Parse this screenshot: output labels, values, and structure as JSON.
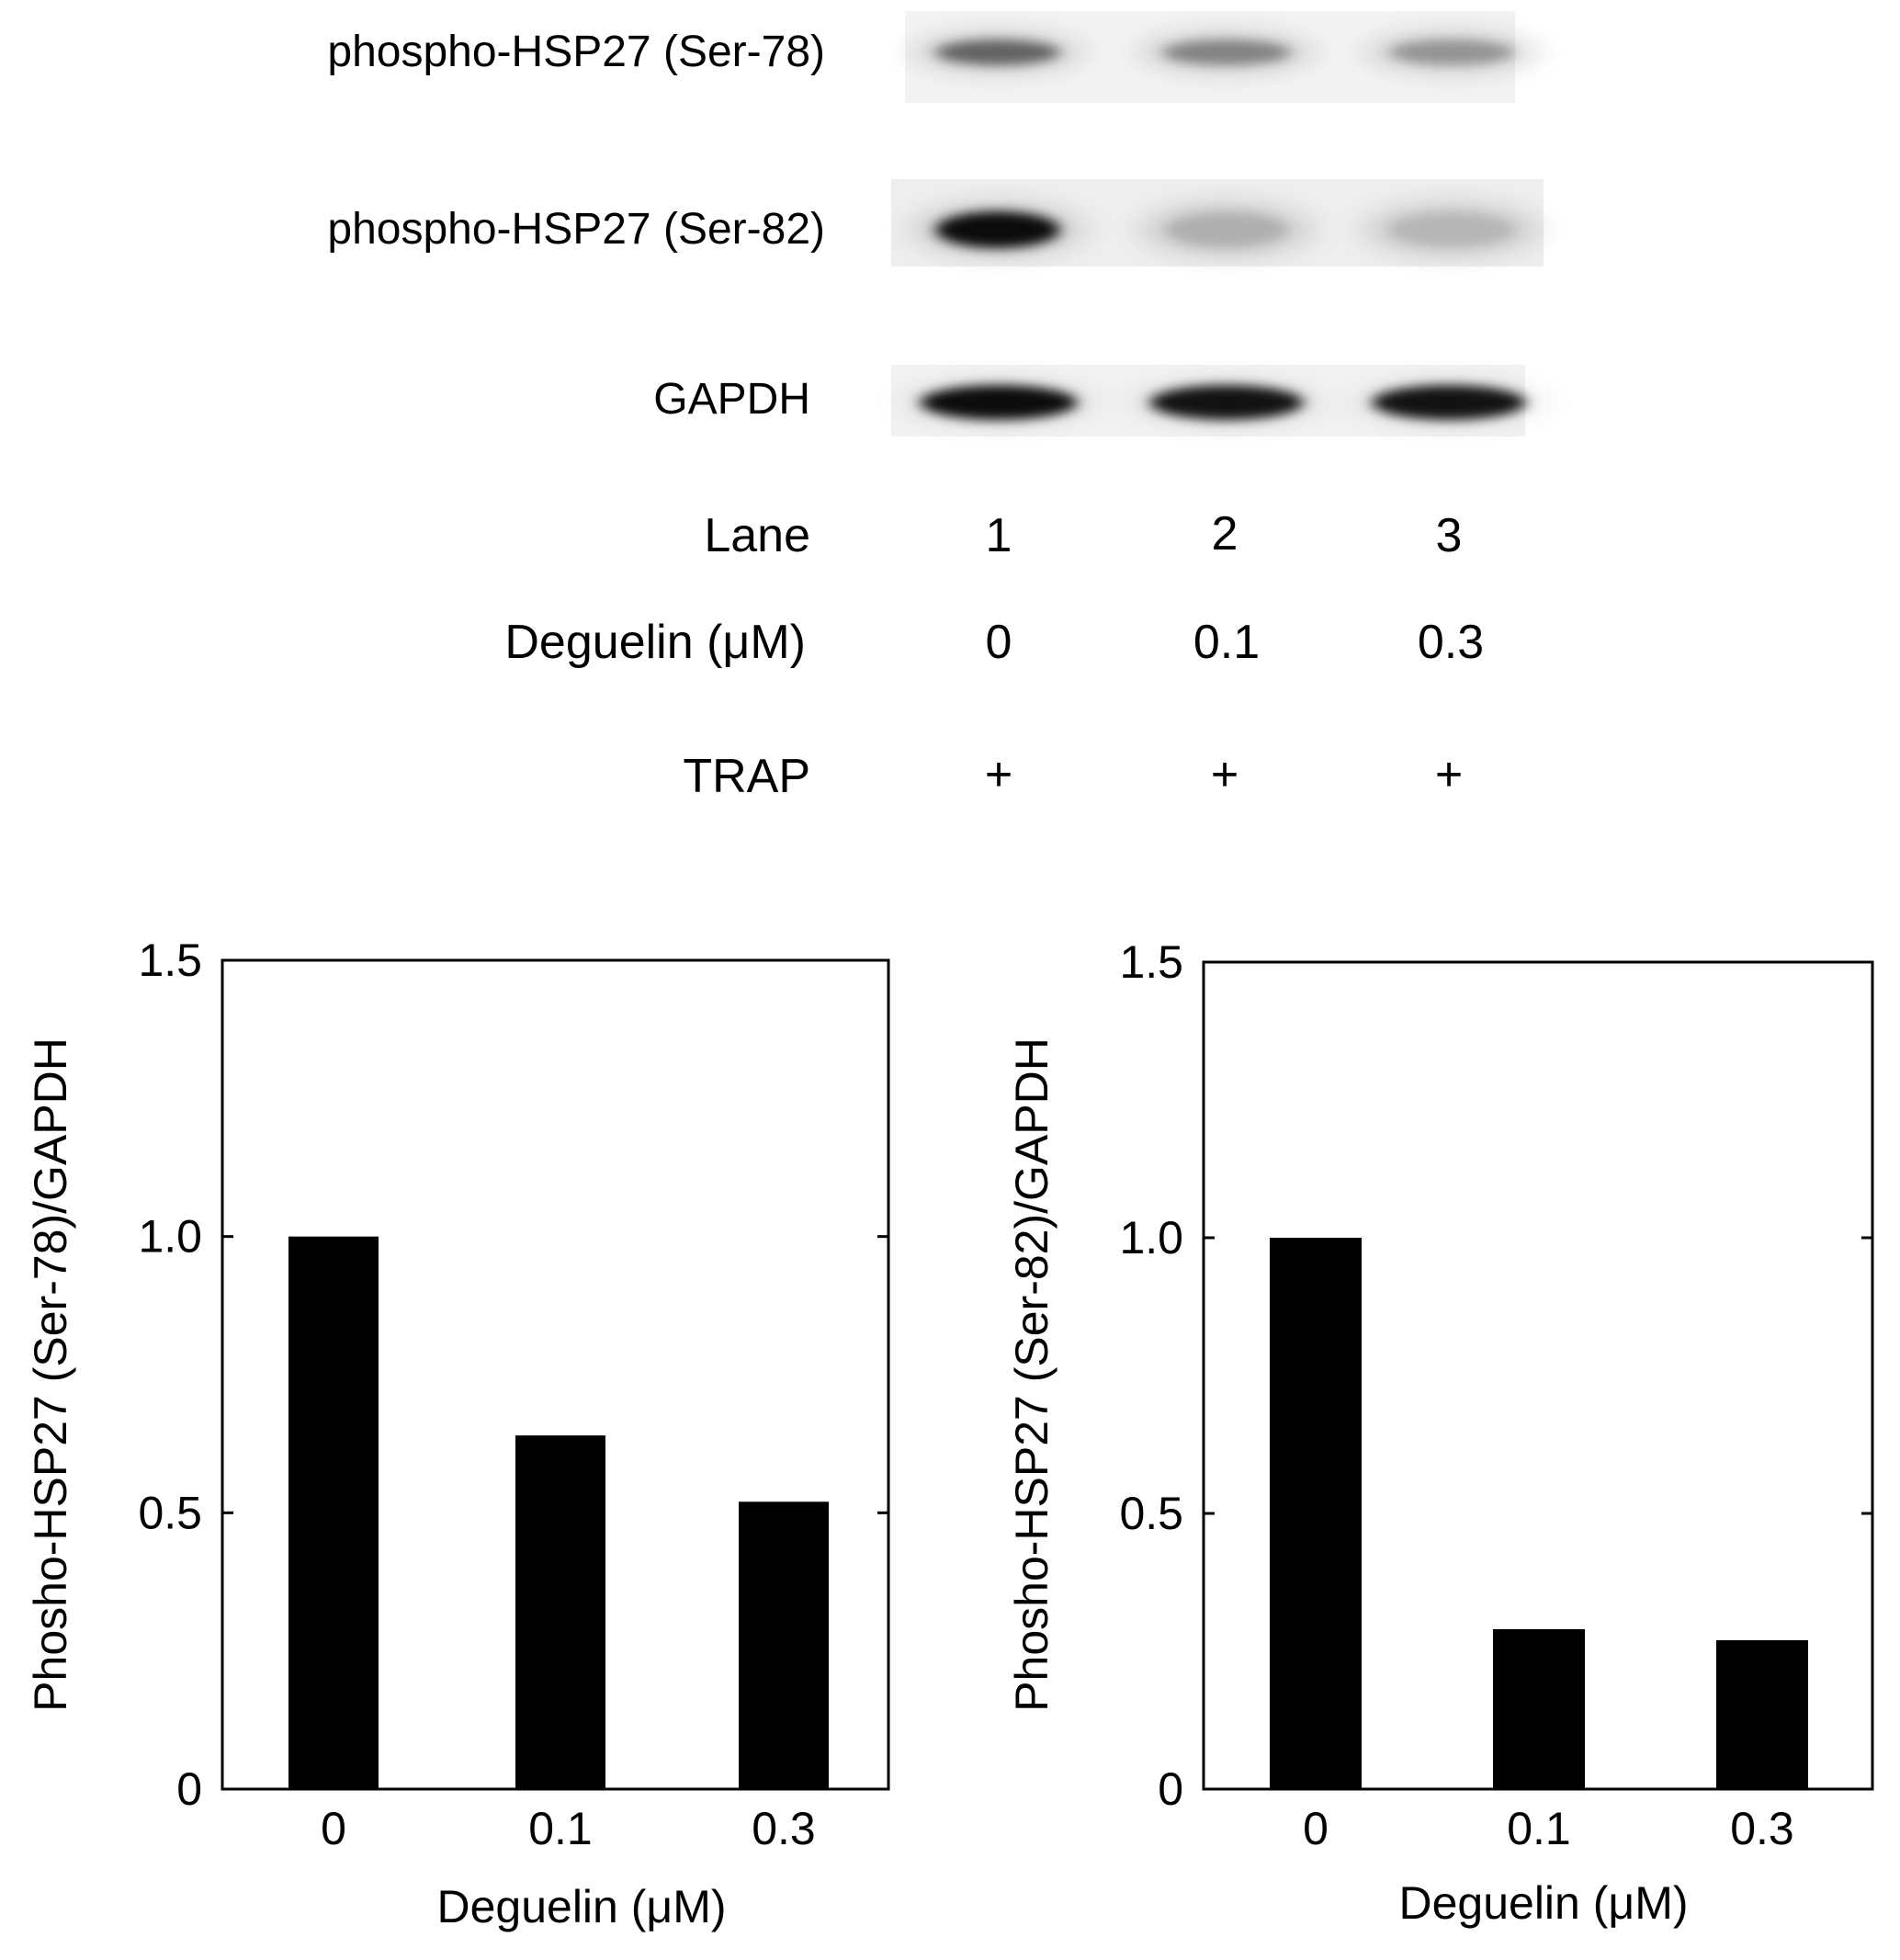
{
  "blot": {
    "rows": [
      {
        "label": "phospho-HSP27 (Ser-78)",
        "intensities": [
          0.55,
          0.4,
          0.32
        ],
        "smear": 0.1
      },
      {
        "label": "phospho-HSP27 (Ser-82)",
        "intensities": [
          0.95,
          0.18,
          0.15
        ],
        "smear": 0.1
      },
      {
        "label": "GAPDH",
        "intensities": [
          0.95,
          0.92,
          0.92
        ],
        "smear": 0.04
      }
    ],
    "conditions": [
      {
        "label": "Lane",
        "values": [
          "1",
          "2",
          "3"
        ]
      },
      {
        "label": "Deguelin (μM)",
        "values": [
          "0",
          "0.1",
          "0.3"
        ]
      },
      {
        "label": "TRAP",
        "values": [
          "+",
          "+",
          "+"
        ]
      }
    ]
  },
  "chart_data": [
    {
      "type": "bar",
      "categories": [
        "0",
        "0.1",
        "0.3"
      ],
      "values": [
        1.0,
        0.64,
        0.52
      ],
      "xlabel": "Deguelin (μM)",
      "ylabel": "Phosho-HSP27 (Ser-78)/GAPDH",
      "ylim": [
        0,
        1.5
      ],
      "yticks": [
        "0",
        "0.5",
        "1.0",
        "1.5"
      ],
      "bar_color": "#000000",
      "grid": false
    },
    {
      "type": "bar",
      "categories": [
        "0",
        "0.1",
        "0.3"
      ],
      "values": [
        1.0,
        0.29,
        0.27
      ],
      "xlabel": "Deguelin (μM)",
      "ylabel": "Phosho-HSP27 (Ser-82)/GAPDH",
      "ylim": [
        0,
        1.5
      ],
      "yticks": [
        "0",
        "0.5",
        "1.0",
        "1.5"
      ],
      "bar_color": "#000000",
      "grid": false
    }
  ]
}
